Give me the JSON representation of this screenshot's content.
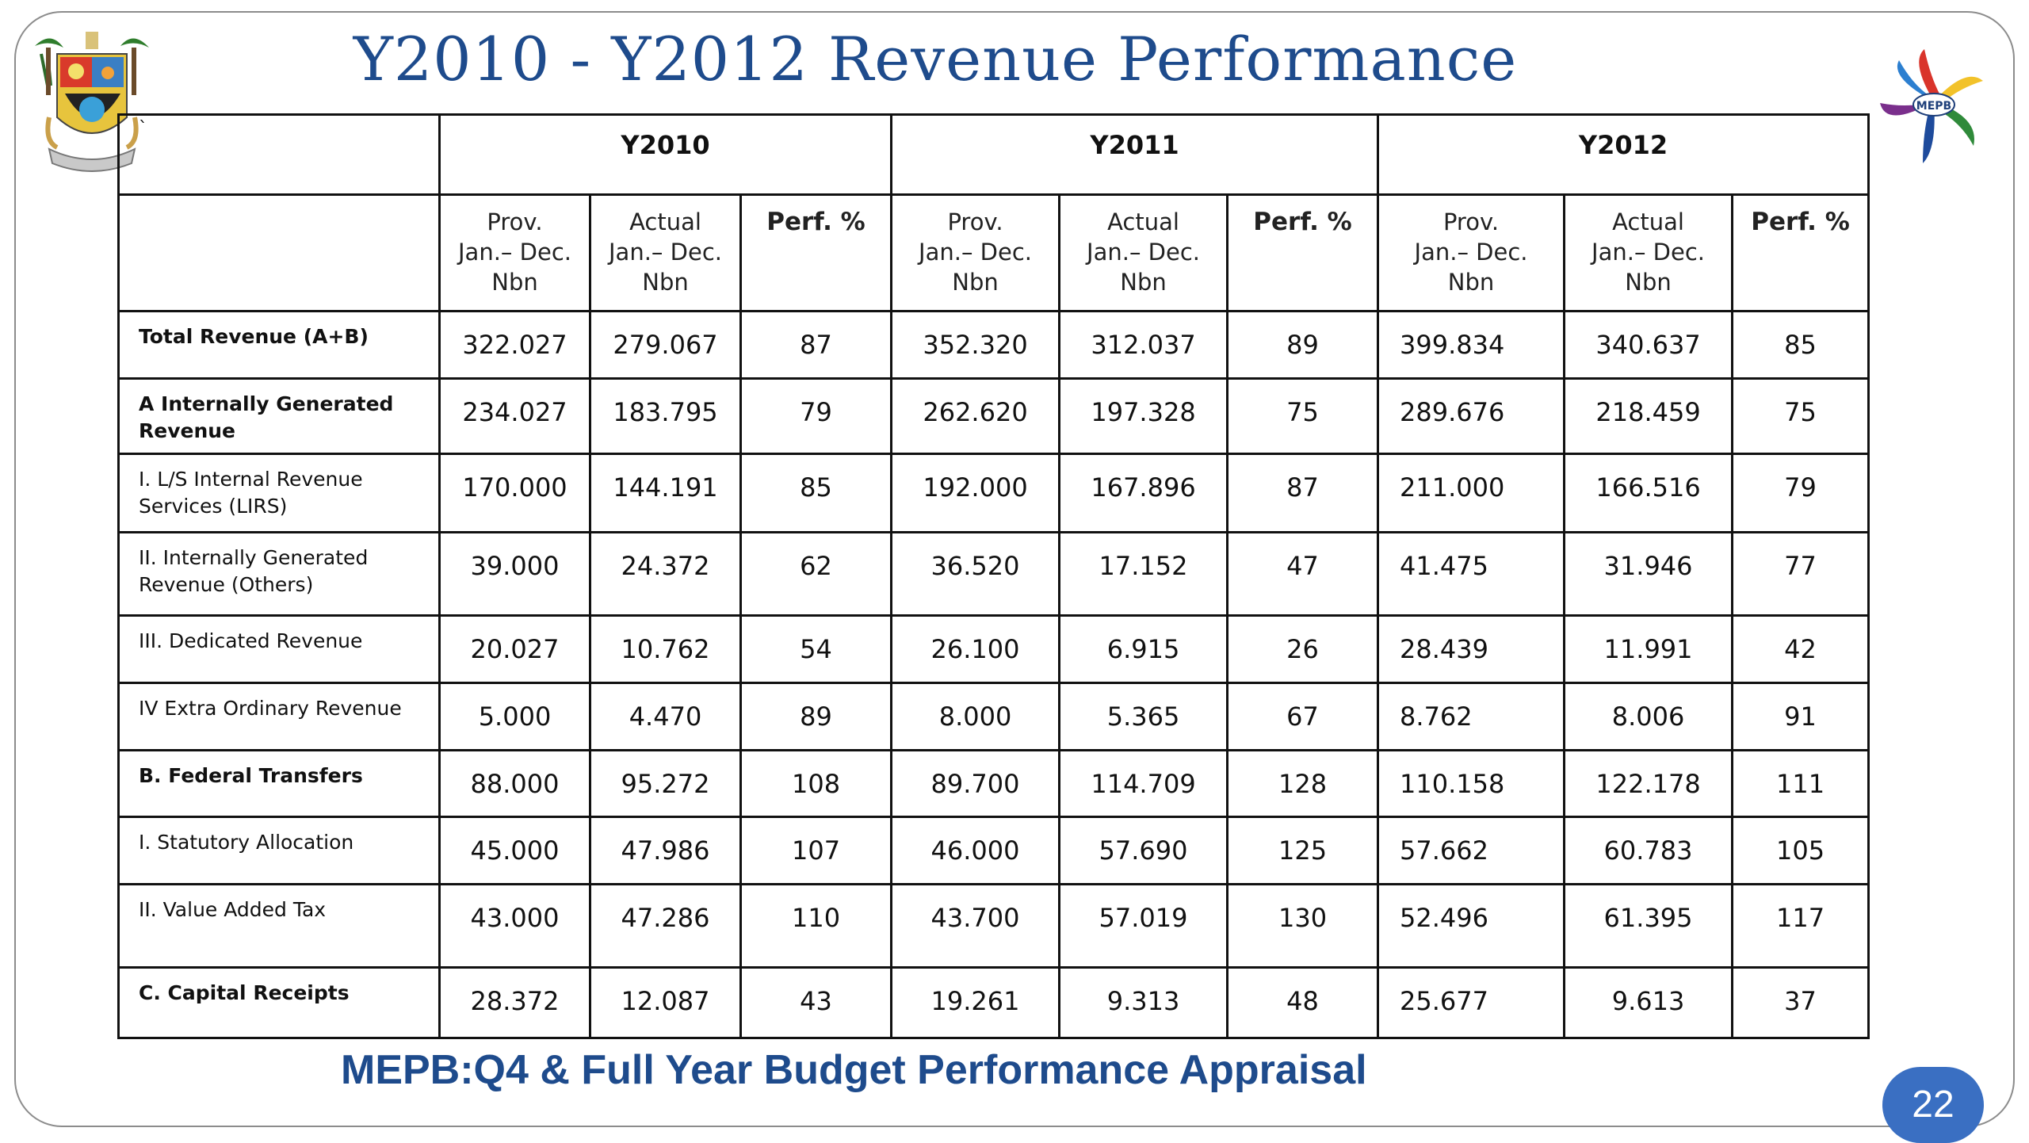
{
  "title": "Y2010 - Y2012 Revenue Performance",
  "corner_mark": "`",
  "right_logo_text": "MEPB",
  "years": [
    "Y2010",
    "Y2011",
    "Y2012"
  ],
  "subheaders": {
    "prov": [
      "Prov.",
      "Jan.– Dec.",
      "Nbn"
    ],
    "actual": [
      "Actual",
      "Jan.– Dec.",
      "Nbn"
    ],
    "perf": "Perf. %"
  },
  "rows": [
    {
      "label": "Total Revenue (A+B)",
      "bold": true,
      "values": [
        "322.027",
        "279.067",
        "87",
        "352.320",
        "312.037",
        "89",
        "399.834",
        "340.637",
        "85"
      ]
    },
    {
      "label": "A Internally Generated Revenue",
      "bold": true,
      "values": [
        "234.027",
        "183.795",
        "79",
        "262.620",
        "197.328",
        "75",
        "289.676",
        "218.459",
        "75"
      ]
    },
    {
      "label": "I. L/S Internal   Revenue Services (LIRS)",
      "bold": false,
      "values": [
        "170.000",
        "144.191",
        "85",
        "192.000",
        "167.896",
        "87",
        "211.000",
        "166.516",
        "79"
      ]
    },
    {
      "label": "II. Internally   Generated Revenue (Others)",
      "bold": false,
      "values": [
        "39.000",
        "24.372",
        "62",
        "36.520",
        "17.152",
        "47",
        "41.475",
        "31.946",
        "77"
      ]
    },
    {
      "label": "III. Dedicated Revenue",
      "bold": false,
      "values": [
        "20.027",
        "10.762",
        "54",
        "26.100",
        "6.915",
        "26",
        "28.439",
        "11.991",
        "42"
      ]
    },
    {
      "label": "IV Extra Ordinary Revenue",
      "bold": false,
      "values": [
        "5.000",
        "4.470",
        "89",
        "8.000",
        "5.365",
        "67",
        "8.762",
        "8.006",
        "91"
      ]
    },
    {
      "label": "B.   Federal Transfers",
      "bold": true,
      "values": [
        "88.000",
        "95.272",
        "108",
        "89.700",
        "114.709",
        "128",
        "110.158",
        "122.178",
        "111"
      ]
    },
    {
      "label": "I.  Statutory Allocation",
      "bold": false,
      "values": [
        "45.000",
        "47.986",
        "107",
        "46.000",
        "57.690",
        "125",
        "57.662",
        "60.783",
        "105"
      ]
    },
    {
      "label": "II. Value Added Tax",
      "bold": false,
      "values": [
        "43.000",
        "47.286",
        "110",
        "43.700",
        "57.019",
        "130",
        "52.496",
        "61.395",
        "117"
      ]
    },
    {
      "label": "C.  Capital Receipts",
      "bold": true,
      "values": [
        "28.372",
        "12.087",
        "43",
        "19.261",
        "9.313",
        "48",
        "25.677",
        "9.613",
        "37"
      ]
    }
  ],
  "footer": "MEPB:Q4 & Full Year  Budget Performance Appraisal",
  "page_number": "22",
  "colors": {
    "title": "#1e4b8c",
    "footer": "#1e4b8c",
    "badge": "#3a6fc2"
  }
}
